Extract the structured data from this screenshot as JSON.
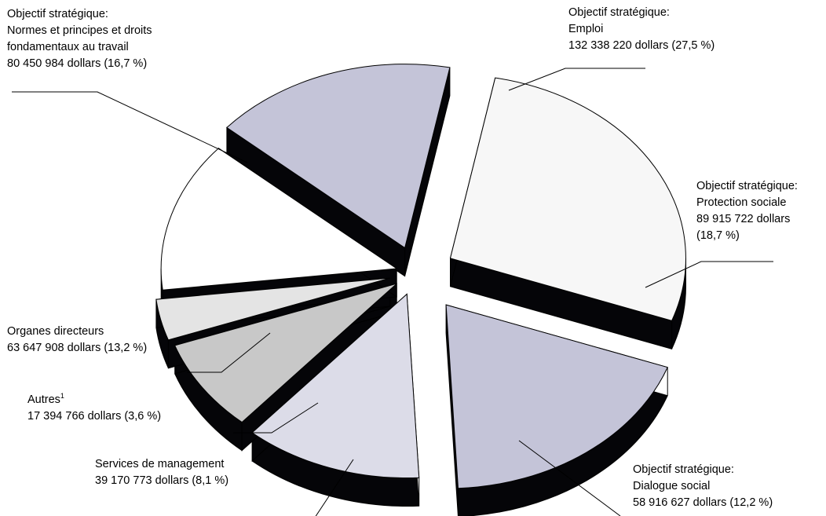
{
  "chart_data": {
    "type": "pie",
    "colors": {
      "emploi": "#f7f7f7",
      "protection": "#c4c4d8",
      "dialogue": "#dcdce8",
      "management": "#c8c8c8",
      "autres": "#e4e4e4",
      "organes": "#ffffff",
      "normes": "#c4c4d8",
      "side": "#050508",
      "stroke": "#000000"
    },
    "slices": [
      {
        "key": "emploi",
        "lines": [
          "Objectif stratégique:",
          "Emploi",
          "132 338 220 dollars (27,5 %)"
        ],
        "value": 132338220,
        "percent": 27.5
      },
      {
        "key": "protection",
        "lines": [
          "Objectif stratégique:",
          "Protection sociale",
          "89 915 722 dollars",
          "(18,7 %)"
        ],
        "value": 89915722,
        "percent": 18.7
      },
      {
        "key": "dialogue",
        "lines": [
          "Objectif stratégique:",
          "Dialogue social",
          "58 916 627 dollars (12,2 %)"
        ],
        "value": 58916627,
        "percent": 12.2
      },
      {
        "key": "management",
        "lines": [
          "Services de management",
          "39 170 773 dollars (8,1 %)"
        ],
        "value": 39170773,
        "percent": 8.1
      },
      {
        "key": "autres",
        "lines": [
          "Autres",
          "17 394 766 dollars (3,6 %)"
        ],
        "superscript": "1",
        "value": 17394766,
        "percent": 3.6
      },
      {
        "key": "organes",
        "lines": [
          "Organes directeurs",
          "63 647 908 dollars (13,2 %)"
        ],
        "value": 63647908,
        "percent": 13.2
      },
      {
        "key": "normes",
        "lines": [
          "Objectif stratégique:",
          "Normes et principes et droits",
          "fondamentaux au travail",
          "80 450 984 dollars (16,7 %)"
        ],
        "value": 80450984,
        "percent": 16.7
      }
    ]
  }
}
